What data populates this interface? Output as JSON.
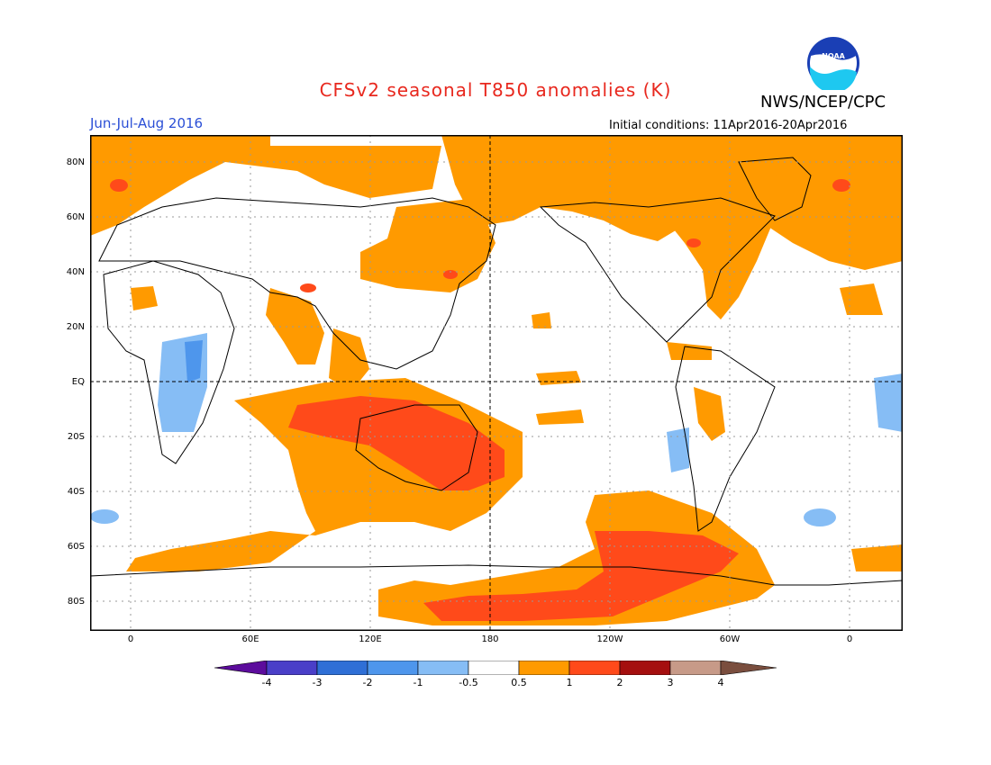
{
  "header": {
    "title": "CFSv2 seasonal T850 anomalies (K)",
    "agency": "NWS/NCEP/CPC",
    "season": "Jun-Jul-Aug 2016",
    "initial_conditions": "Initial conditions: 11Apr2016-20Apr2016",
    "logo_text": "NOAA"
  },
  "map": {
    "lat_labels": [
      "80N",
      "60N",
      "40N",
      "20N",
      "EQ",
      "20S",
      "40S",
      "60S",
      "80S"
    ],
    "lon_labels": [
      "0",
      "60E",
      "120E",
      "180",
      "120W",
      "60W",
      "0"
    ]
  },
  "colorbar": {
    "tick_labels": [
      "-4",
      "-3",
      "-2",
      "-1",
      "-0.5",
      "0.5",
      "1",
      "2",
      "3",
      "4"
    ],
    "colors": [
      "#5c0c9c",
      "#4a3fc8",
      "#2f6fd6",
      "#4e96ec",
      "#86bdf5",
      "#ffffff",
      "#ff9a00",
      "#ff4a1a",
      "#a50f0f",
      "#c79a88",
      "#7a4e3e"
    ]
  }
}
